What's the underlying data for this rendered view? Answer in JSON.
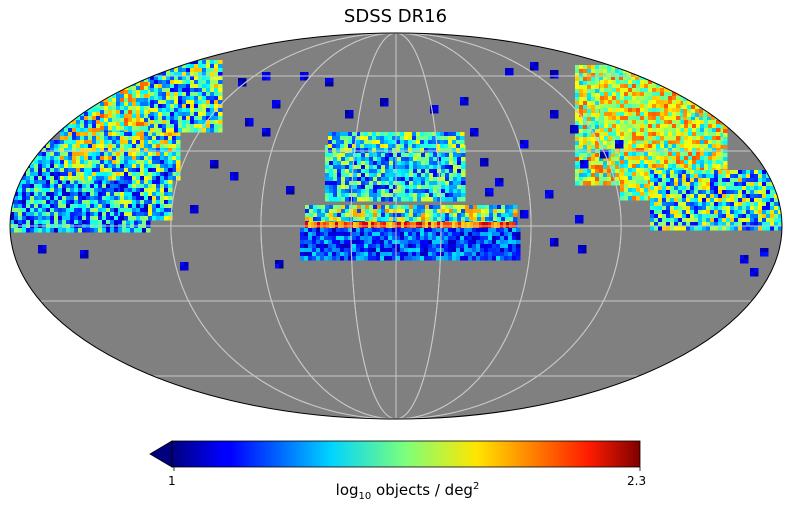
{
  "chart_data": {
    "type": "heatmap",
    "projection": "mollweide",
    "title": "SDSS DR16",
    "colorbar": {
      "label_main": "log",
      "label_sub": "10",
      "label_rest": " objects / deg",
      "label_sup": "2",
      "min": 1,
      "max": 2.3,
      "min_label": "1",
      "max_label": "2.3",
      "colormap": "jet",
      "extend": "min",
      "orientation": "horizontal"
    },
    "graticule": true,
    "background_color": "#808080"
  }
}
